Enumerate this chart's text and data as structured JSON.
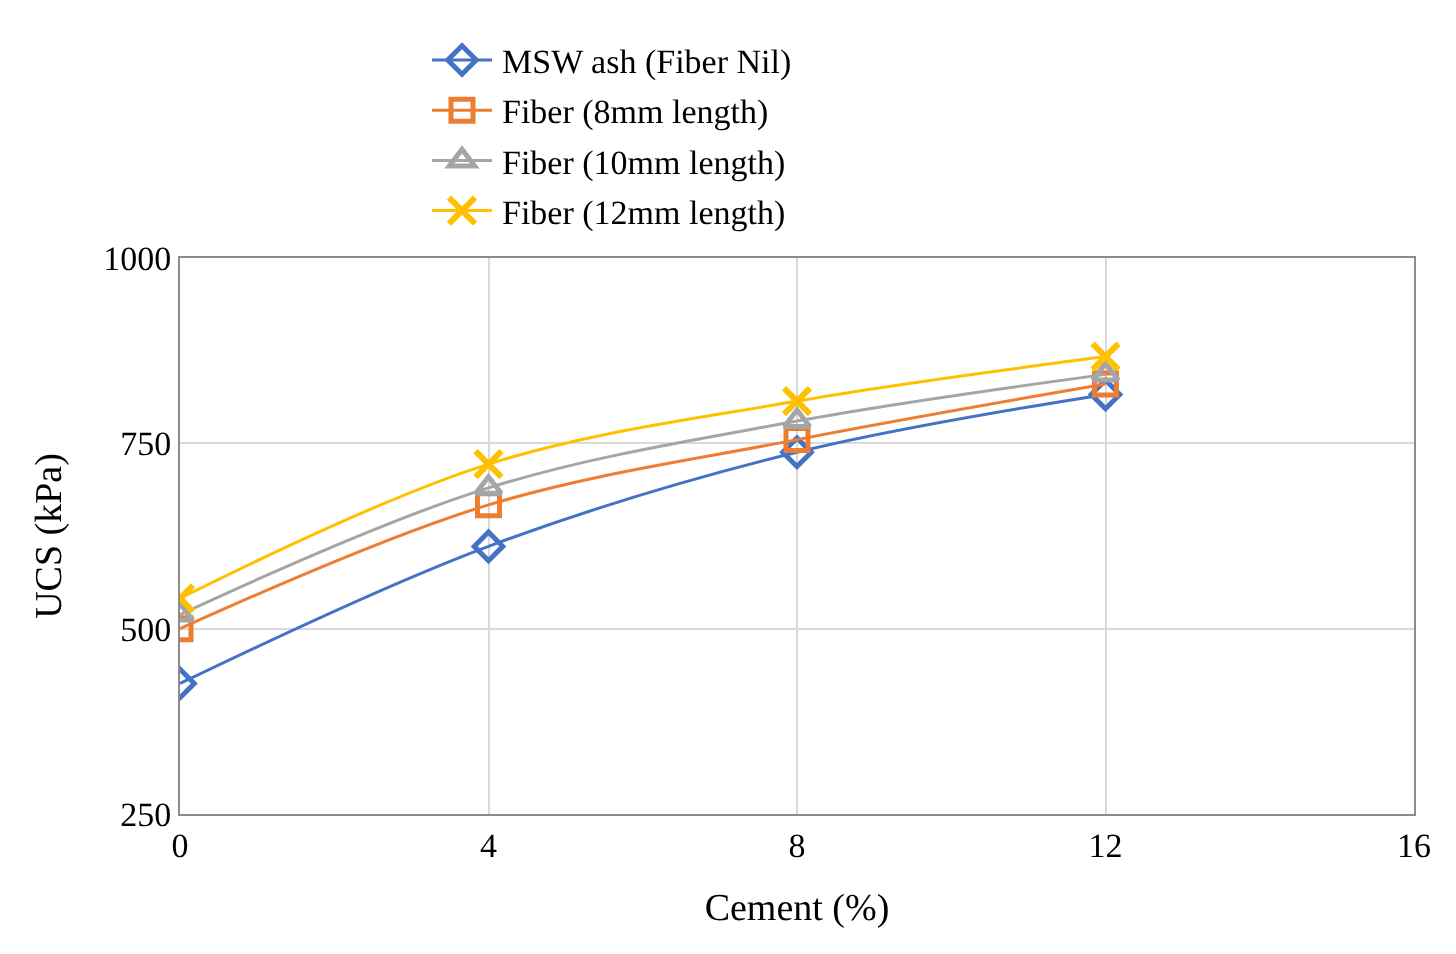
{
  "chart_data": {
    "type": "line",
    "xlabel": "Cement (%)",
    "ylabel": "UCS (kPa)",
    "x": [
      0,
      4,
      8,
      12
    ],
    "xlim": [
      0,
      16
    ],
    "xticks": [
      0,
      4,
      8,
      12,
      16
    ],
    "ylim": [
      250,
      1000
    ],
    "yticks": [
      250,
      500,
      750,
      1000
    ],
    "grid": true,
    "legend": "top",
    "series": [
      {
        "name": "MSW ash (Fiber Nil)",
        "color": "#4472c4",
        "marker": "diamond",
        "values": [
          426,
          611,
          738,
          816
        ]
      },
      {
        "name": "Fiber (8mm length)",
        "color": "#ed7d31",
        "marker": "square",
        "values": [
          500,
          667,
          755,
          830
        ]
      },
      {
        "name": "Fiber (10mm length)",
        "color": "#a5a5a5",
        "marker": "triangle",
        "values": [
          519,
          690,
          780,
          843
        ]
      },
      {
        "name": "Fiber (12mm length)",
        "color": "#ffc000",
        "marker": "cross",
        "values": [
          541,
          722,
          807,
          867
        ]
      }
    ]
  }
}
